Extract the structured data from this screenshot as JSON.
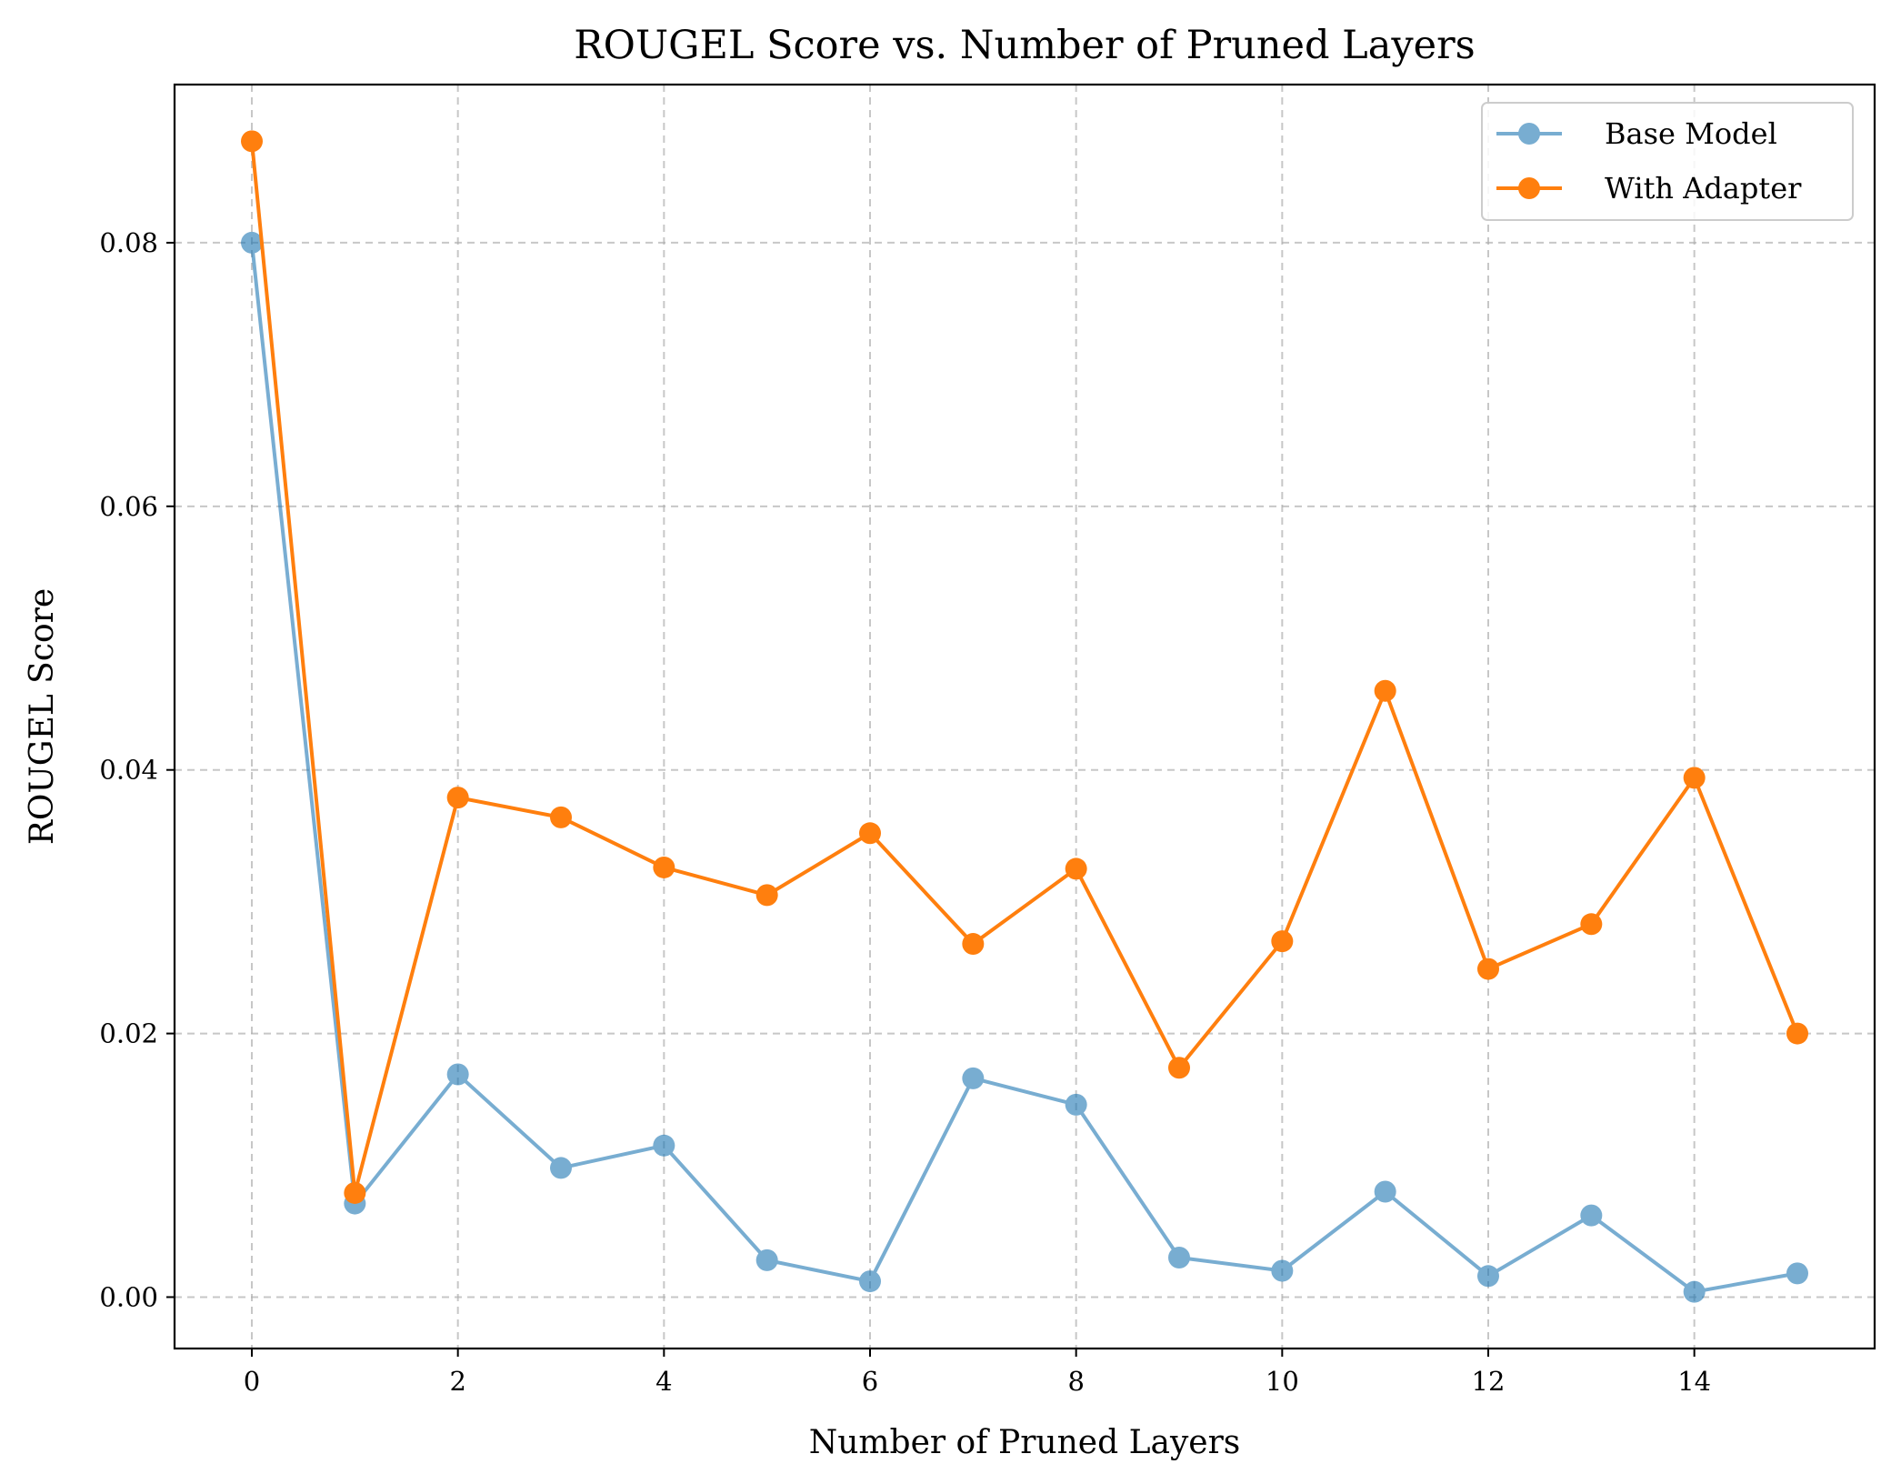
{
  "chart_data": {
    "type": "line",
    "title": "ROUGEL Score vs. Number of Pruned Layers",
    "xlabel": "Number of Pruned Layers",
    "ylabel": "ROUGEL Score",
    "x": [
      0,
      1,
      2,
      3,
      4,
      5,
      6,
      7,
      8,
      9,
      10,
      11,
      12,
      13,
      14,
      15
    ],
    "xlim": [
      -0.75,
      15.75
    ],
    "ylim": [
      -0.0039,
      0.092
    ],
    "xticks": [
      0,
      2,
      4,
      6,
      8,
      10,
      12,
      14
    ],
    "xtick_labels": [
      "0",
      "2",
      "4",
      "6",
      "8",
      "10",
      "12",
      "14"
    ],
    "yticks": [
      0.0,
      0.02,
      0.04,
      0.06,
      0.08
    ],
    "ytick_labels": [
      "0.00",
      "0.02",
      "0.04",
      "0.06",
      "0.08"
    ],
    "grid": true,
    "legend_position": "top-right",
    "series": [
      {
        "name": "Base Model",
        "color": "#1f77b4",
        "alpha": 0.6,
        "values": [
          0.08,
          0.0071,
          0.0169,
          0.0098,
          0.0115,
          0.0028,
          0.0012,
          0.0166,
          0.0146,
          0.003,
          0.002,
          0.008,
          0.0016,
          0.0062,
          0.0004,
          0.0018
        ]
      },
      {
        "name": "With Adapter",
        "color": "#ff7f0e",
        "alpha": 1.0,
        "values": [
          0.0877,
          0.0079,
          0.0379,
          0.0364,
          0.0326,
          0.0305,
          0.0352,
          0.0268,
          0.0325,
          0.0174,
          0.027,
          0.046,
          0.0249,
          0.0283,
          0.0394,
          0.02
        ]
      }
    ]
  }
}
